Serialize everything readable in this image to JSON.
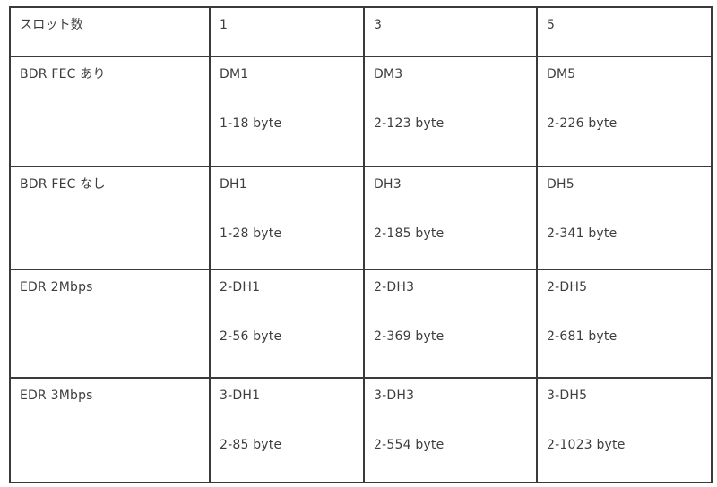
{
  "table": {
    "border_color": "#3a3a3a",
    "text_color": "#3d3d3d",
    "background": "#ffffff",
    "header": {
      "col0": "スロット数",
      "col1": "1",
      "col2": "3",
      "col3": "5"
    },
    "rows": [
      {
        "label": "BDR FEC あり",
        "cells": [
          {
            "name": "DM1",
            "bytes": "1-18 byte"
          },
          {
            "name": "DM3",
            "bytes": "2-123 byte"
          },
          {
            "name": "DM5",
            "bytes": "2-226 byte"
          }
        ]
      },
      {
        "label": "BDR FEC なし",
        "cells": [
          {
            "name": "DH1",
            "bytes": "1-28 byte"
          },
          {
            "name": "DH3",
            "bytes": "2-185 byte"
          },
          {
            "name": "DH5",
            "bytes": "2-341 byte"
          }
        ]
      },
      {
        "label": "EDR 2Mbps",
        "cells": [
          {
            "name": "2-DH1",
            "bytes": "2-56 byte"
          },
          {
            "name": "2-DH3",
            "bytes": "2-369 byte"
          },
          {
            "name": "2-DH5",
            "bytes": "2-681 byte"
          }
        ]
      },
      {
        "label": "EDR 3Mbps",
        "cells": [
          {
            "name": "3-DH1",
            "bytes": "2-85 byte"
          },
          {
            "name": "3-DH3",
            "bytes": "2-554 byte"
          },
          {
            "name": "3-DH5",
            "bytes": "2-1023 byte"
          }
        ]
      }
    ]
  }
}
